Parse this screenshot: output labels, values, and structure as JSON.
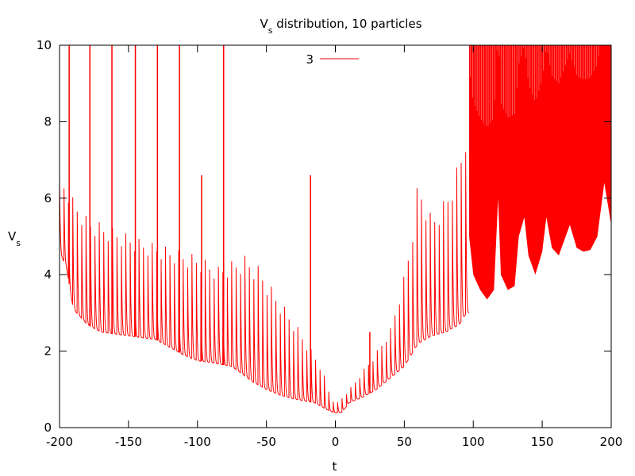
{
  "chart_data": {
    "type": "line",
    "title": {
      "main": "V",
      "sub": "s",
      "rest": " distribution, 10 particles"
    },
    "xlabel": "t",
    "ylabel": {
      "main": "V",
      "sub": "s"
    },
    "xlim": [
      -200,
      200
    ],
    "ylim": [
      0,
      10
    ],
    "xticks": [
      -200,
      -150,
      -100,
      -50,
      0,
      50,
      100,
      150,
      200
    ],
    "yticks": [
      0,
      2,
      4,
      6,
      8,
      10
    ],
    "legend_position": "top-center",
    "series": [
      {
        "name": "3",
        "color": "#ff0000",
        "envelope_base": [
          [
            -200,
            4.6
          ],
          [
            -195,
            4.2
          ],
          [
            -190,
            3.1
          ],
          [
            -180,
            2.7
          ],
          [
            -170,
            2.5
          ],
          [
            -150,
            2.4
          ],
          [
            -130,
            2.3
          ],
          [
            -110,
            1.9
          ],
          [
            -100,
            1.75
          ],
          [
            -90,
            1.7
          ],
          [
            -75,
            1.6
          ],
          [
            -60,
            1.2
          ],
          [
            -50,
            1.0
          ],
          [
            -40,
            0.85
          ],
          [
            -30,
            0.75
          ],
          [
            -15,
            0.65
          ],
          [
            -5,
            0.45
          ],
          [
            0,
            0.38
          ],
          [
            5,
            0.4
          ],
          [
            10,
            0.65
          ],
          [
            20,
            0.8
          ],
          [
            30,
            1.0
          ],
          [
            40,
            1.3
          ],
          [
            50,
            1.6
          ],
          [
            60,
            2.2
          ],
          [
            70,
            2.4
          ],
          [
            80,
            2.5
          ],
          [
            90,
            2.7
          ],
          [
            95,
            3.0
          ]
        ],
        "envelope_peak": [
          [
            -200,
            6.6
          ],
          [
            -190,
            6.0
          ],
          [
            -180,
            5.5
          ],
          [
            -160,
            5.2
          ],
          [
            -140,
            4.9
          ],
          [
            -120,
            4.7
          ],
          [
            -100,
            4.5
          ],
          [
            -85,
            4.2
          ],
          [
            -65,
            4.5
          ],
          [
            -55,
            4.2
          ],
          [
            -45,
            3.6
          ],
          [
            -30,
            2.8
          ],
          [
            -20,
            2.2
          ],
          [
            -10,
            1.6
          ],
          [
            -5,
            1.0
          ],
          [
            0,
            0.6
          ],
          [
            10,
            1.0
          ],
          [
            20,
            1.5
          ],
          [
            30,
            2.0
          ],
          [
            40,
            2.6
          ],
          [
            50,
            4.0
          ],
          [
            55,
            5.0
          ],
          [
            60,
            6.5
          ],
          [
            70,
            5.5
          ],
          [
            80,
            6.0
          ],
          [
            90,
            7.0
          ],
          [
            95,
            8.0
          ]
        ],
        "spike_times": [
          -193,
          -178,
          -162,
          -145,
          -129,
          -113,
          -97,
          -81,
          -18,
          25
        ],
        "spike_heights": [
          10,
          10,
          10,
          10,
          10,
          10,
          6.6,
          10,
          6.6,
          2.5
        ],
        "high_region": {
          "x_start": 97,
          "x_end": 200,
          "lower_envelope": [
            [
              97,
              5.0
            ],
            [
              100,
              4.0
            ],
            [
              105,
              3.6
            ],
            [
              110,
              3.35
            ],
            [
              115,
              3.6
            ],
            [
              118,
              6.0
            ],
            [
              120,
              4.0
            ],
            [
              125,
              3.6
            ],
            [
              130,
              3.7
            ],
            [
              133,
              5.0
            ],
            [
              137,
              5.5
            ],
            [
              140,
              4.5
            ],
            [
              145,
              4.0
            ],
            [
              150,
              4.6
            ],
            [
              153,
              5.5
            ],
            [
              157,
              4.7
            ],
            [
              162,
              4.5
            ],
            [
              167,
              5.0
            ],
            [
              170,
              5.3
            ],
            [
              175,
              4.7
            ],
            [
              180,
              4.6
            ],
            [
              185,
              4.65
            ],
            [
              190,
              5.0
            ],
            [
              195,
              6.4
            ],
            [
              200,
              5.3
            ]
          ],
          "upper": 10
        }
      }
    ]
  }
}
